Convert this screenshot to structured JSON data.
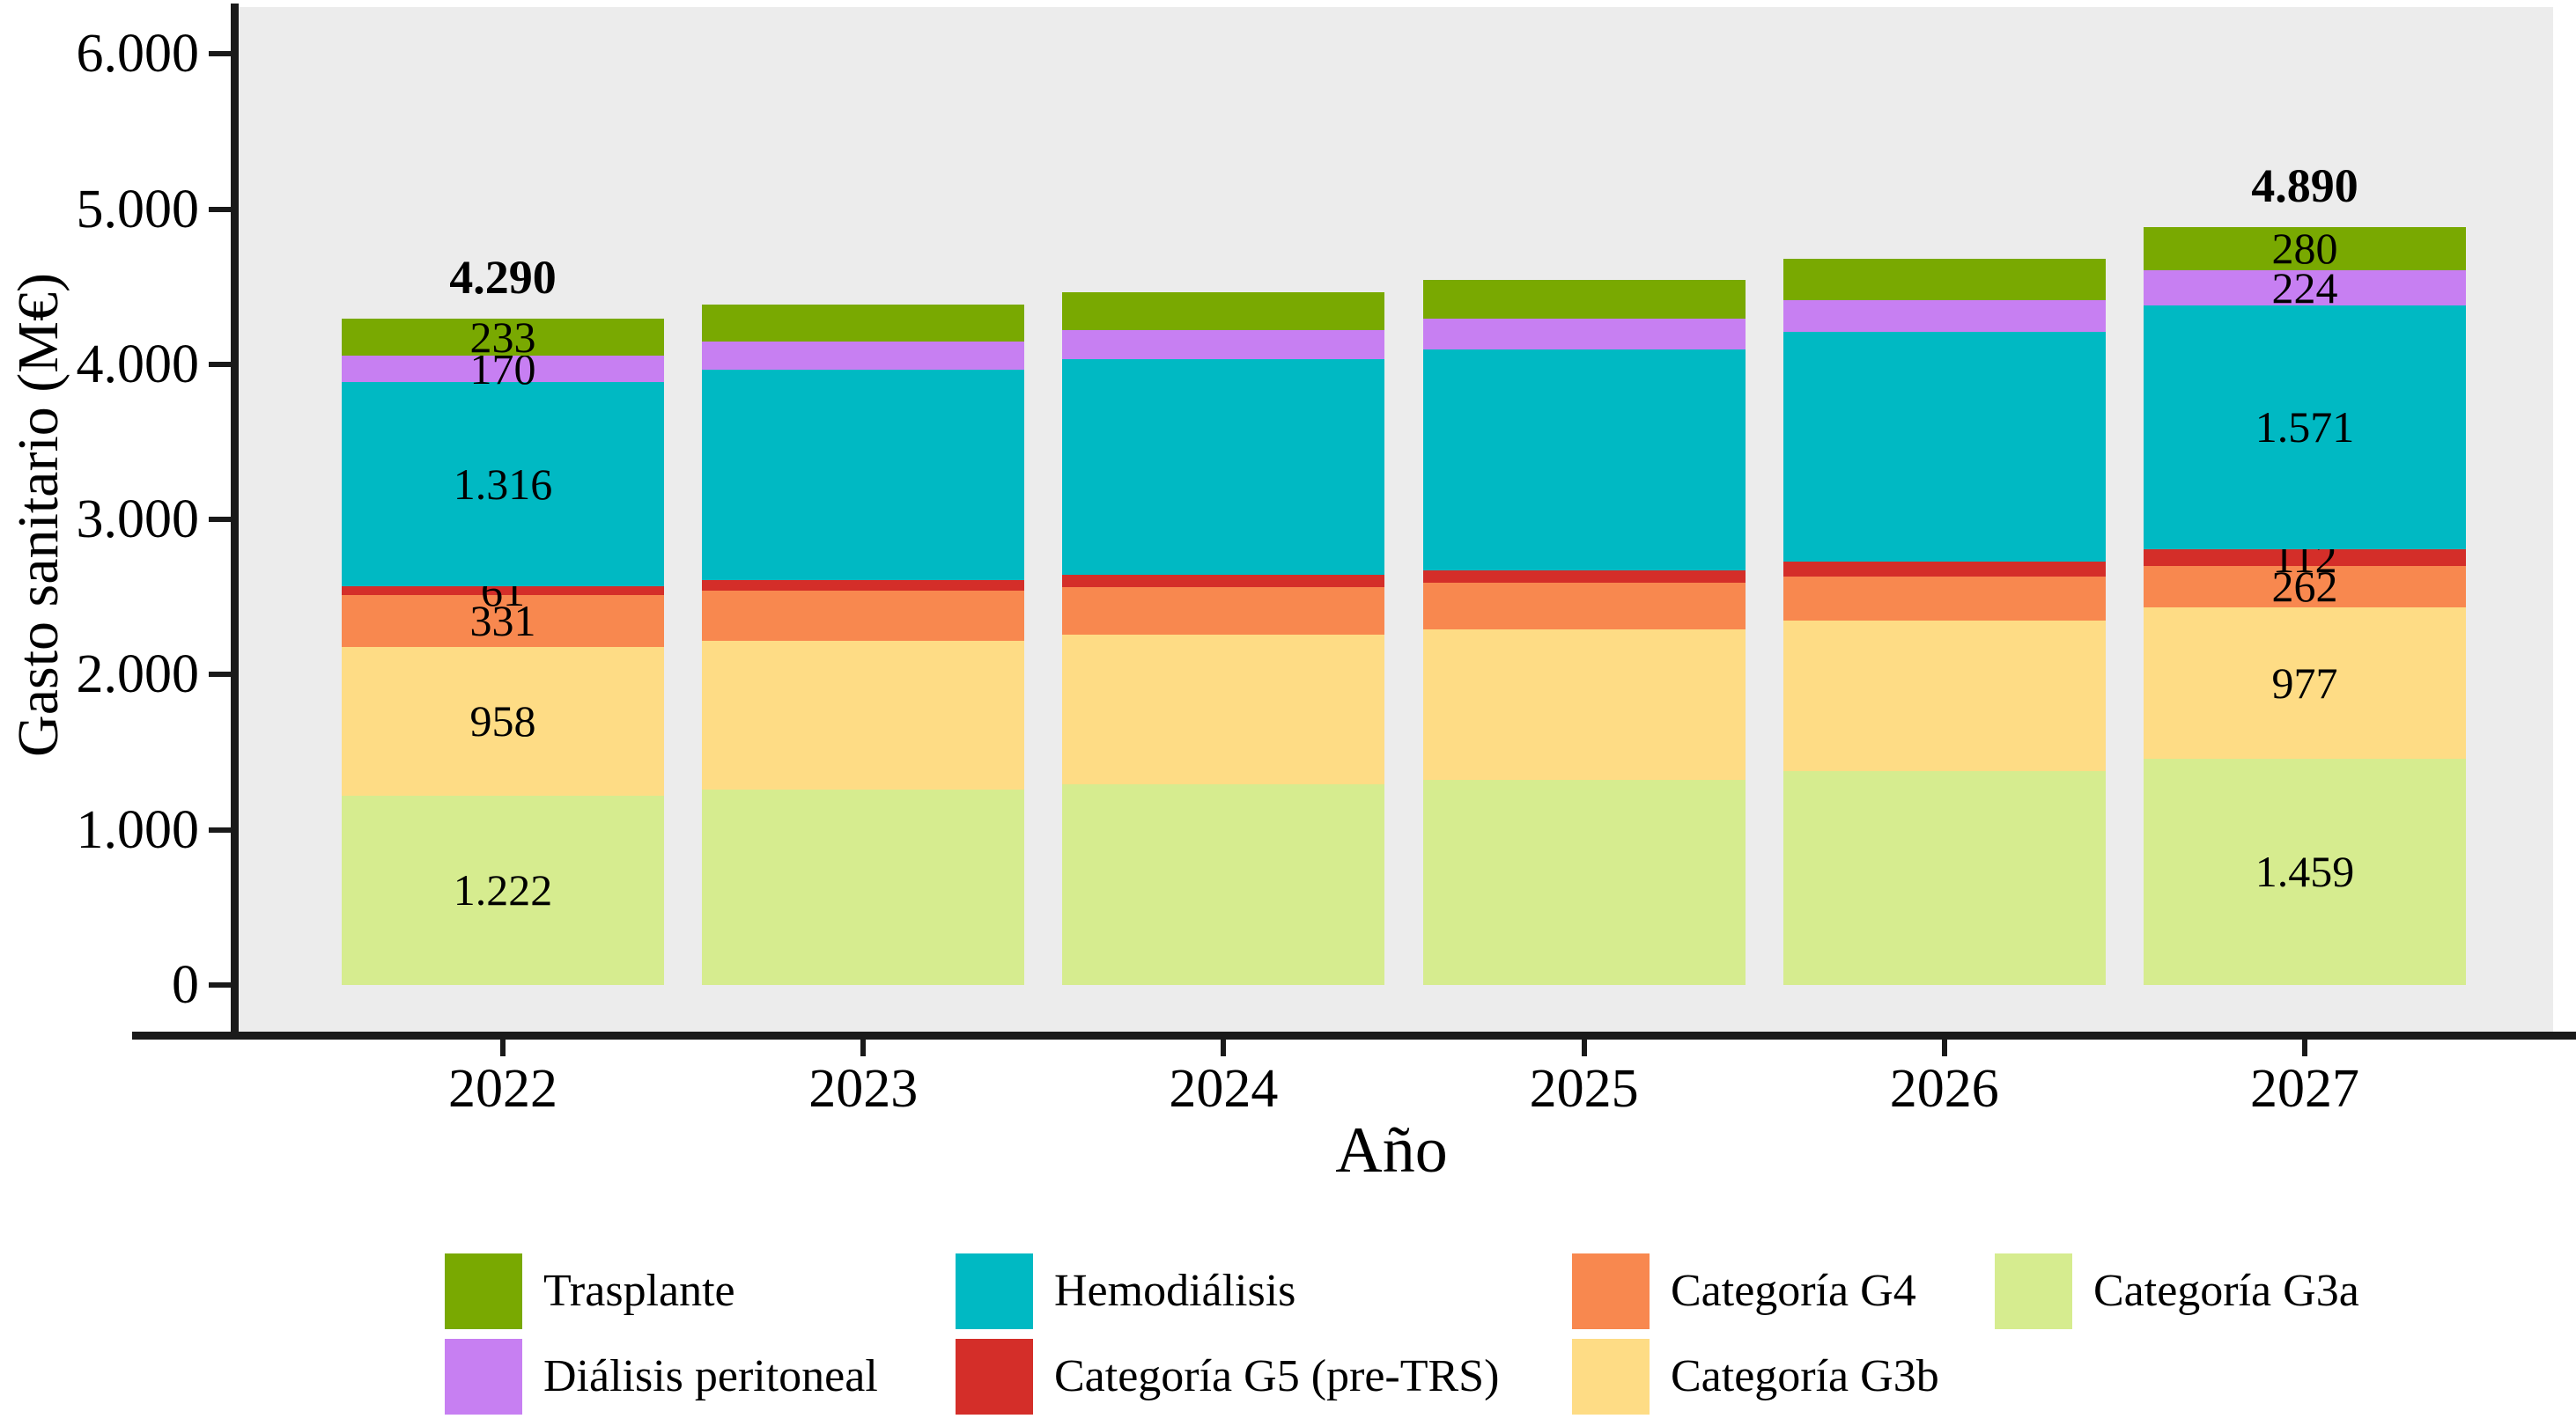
{
  "chart_data": {
    "type": "bar",
    "stacked": true,
    "plot_background": "#ececec",
    "axis_color": "#1a1a1a",
    "x_axis": {
      "title": "Año",
      "tick_labels": [
        "2022",
        "2023",
        "2024",
        "2025",
        "2026",
        "2027"
      ]
    },
    "y_axis": {
      "title": "Gasto sanitario (M€)",
      "tick_labels": [
        "0",
        "1.000",
        "2.000",
        "3.000",
        "4.000",
        "5.000",
        "6.000"
      ],
      "tick_values": [
        0,
        1000,
        2000,
        3000,
        4000,
        5000,
        6000
      ],
      "range": [
        0,
        6300
      ],
      "grid": false
    },
    "categories": [
      "2022",
      "2023",
      "2024",
      "2025",
      "2026",
      "2027"
    ],
    "series": [
      {
        "name": "Categoría G3a",
        "color": "#d6ec8f",
        "values": [
          1222,
          1259,
          1291,
          1323,
          1377,
          1459
        ],
        "labels": [
          "1.222",
          "",
          "",
          "",
          "",
          "1.459"
        ]
      },
      {
        "name": "Categoría G3b",
        "color": "#fedc85",
        "values": [
          958,
          961,
          964,
          966,
          970,
          977
        ],
        "labels": [
          "958",
          "",
          "",
          "",
          "",
          "977"
        ]
      },
      {
        "name": "Categoría G4",
        "color": "#f8884f",
        "values": [
          331,
          320,
          311,
          301,
          286,
          262
        ],
        "labels": [
          "331",
          "",
          "",
          "",
          "",
          "262"
        ]
      },
      {
        "name": "Categoría G5 (pre-TRS)",
        "color": "#d42e29",
        "values": [
          61,
          69,
          76,
          83,
          94,
          112
        ],
        "labels": [
          "61",
          "",
          "",
          "",
          "",
          "112"
        ]
      },
      {
        "name": "Hemodiálisis",
        "color": "#00b9c3",
        "values": [
          1316,
          1356,
          1391,
          1425,
          1483,
          1571
        ],
        "labels": [
          "1.316",
          "",
          "",
          "",
          "",
          "1.571"
        ]
      },
      {
        "name": "Diálisis peritoneal",
        "color": "#c77ff2",
        "values": [
          170,
          179,
          186,
          193,
          205,
          224
        ],
        "labels": [
          "170",
          "",
          "",
          "",
          "",
          "224"
        ]
      },
      {
        "name": "Trasplante",
        "color": "#79a901",
        "values": [
          233,
          240,
          247,
          253,
          264,
          280
        ],
        "labels": [
          "233",
          "",
          "",
          "",
          "",
          "280"
        ]
      }
    ],
    "totals": {
      "labels": [
        "4.290",
        "",
        "",
        "",
        "",
        "4.890"
      ]
    },
    "legend_position": "bottom"
  },
  "legend": {
    "items": [
      {
        "series": "Trasplante",
        "col": 0,
        "row": 0
      },
      {
        "series": "Hemodiálisis",
        "col": 1,
        "row": 0
      },
      {
        "series": "Categoría G4",
        "col": 2,
        "row": 0
      },
      {
        "series": "Categoría G3a",
        "col": 3,
        "row": 0
      },
      {
        "series": "Diálisis peritoneal",
        "col": 0,
        "row": 1
      },
      {
        "series": "Categoría G5 (pre-TRS)",
        "col": 1,
        "row": 1
      },
      {
        "series": "Categoría G3b",
        "col": 2,
        "row": 1
      }
    ]
  }
}
